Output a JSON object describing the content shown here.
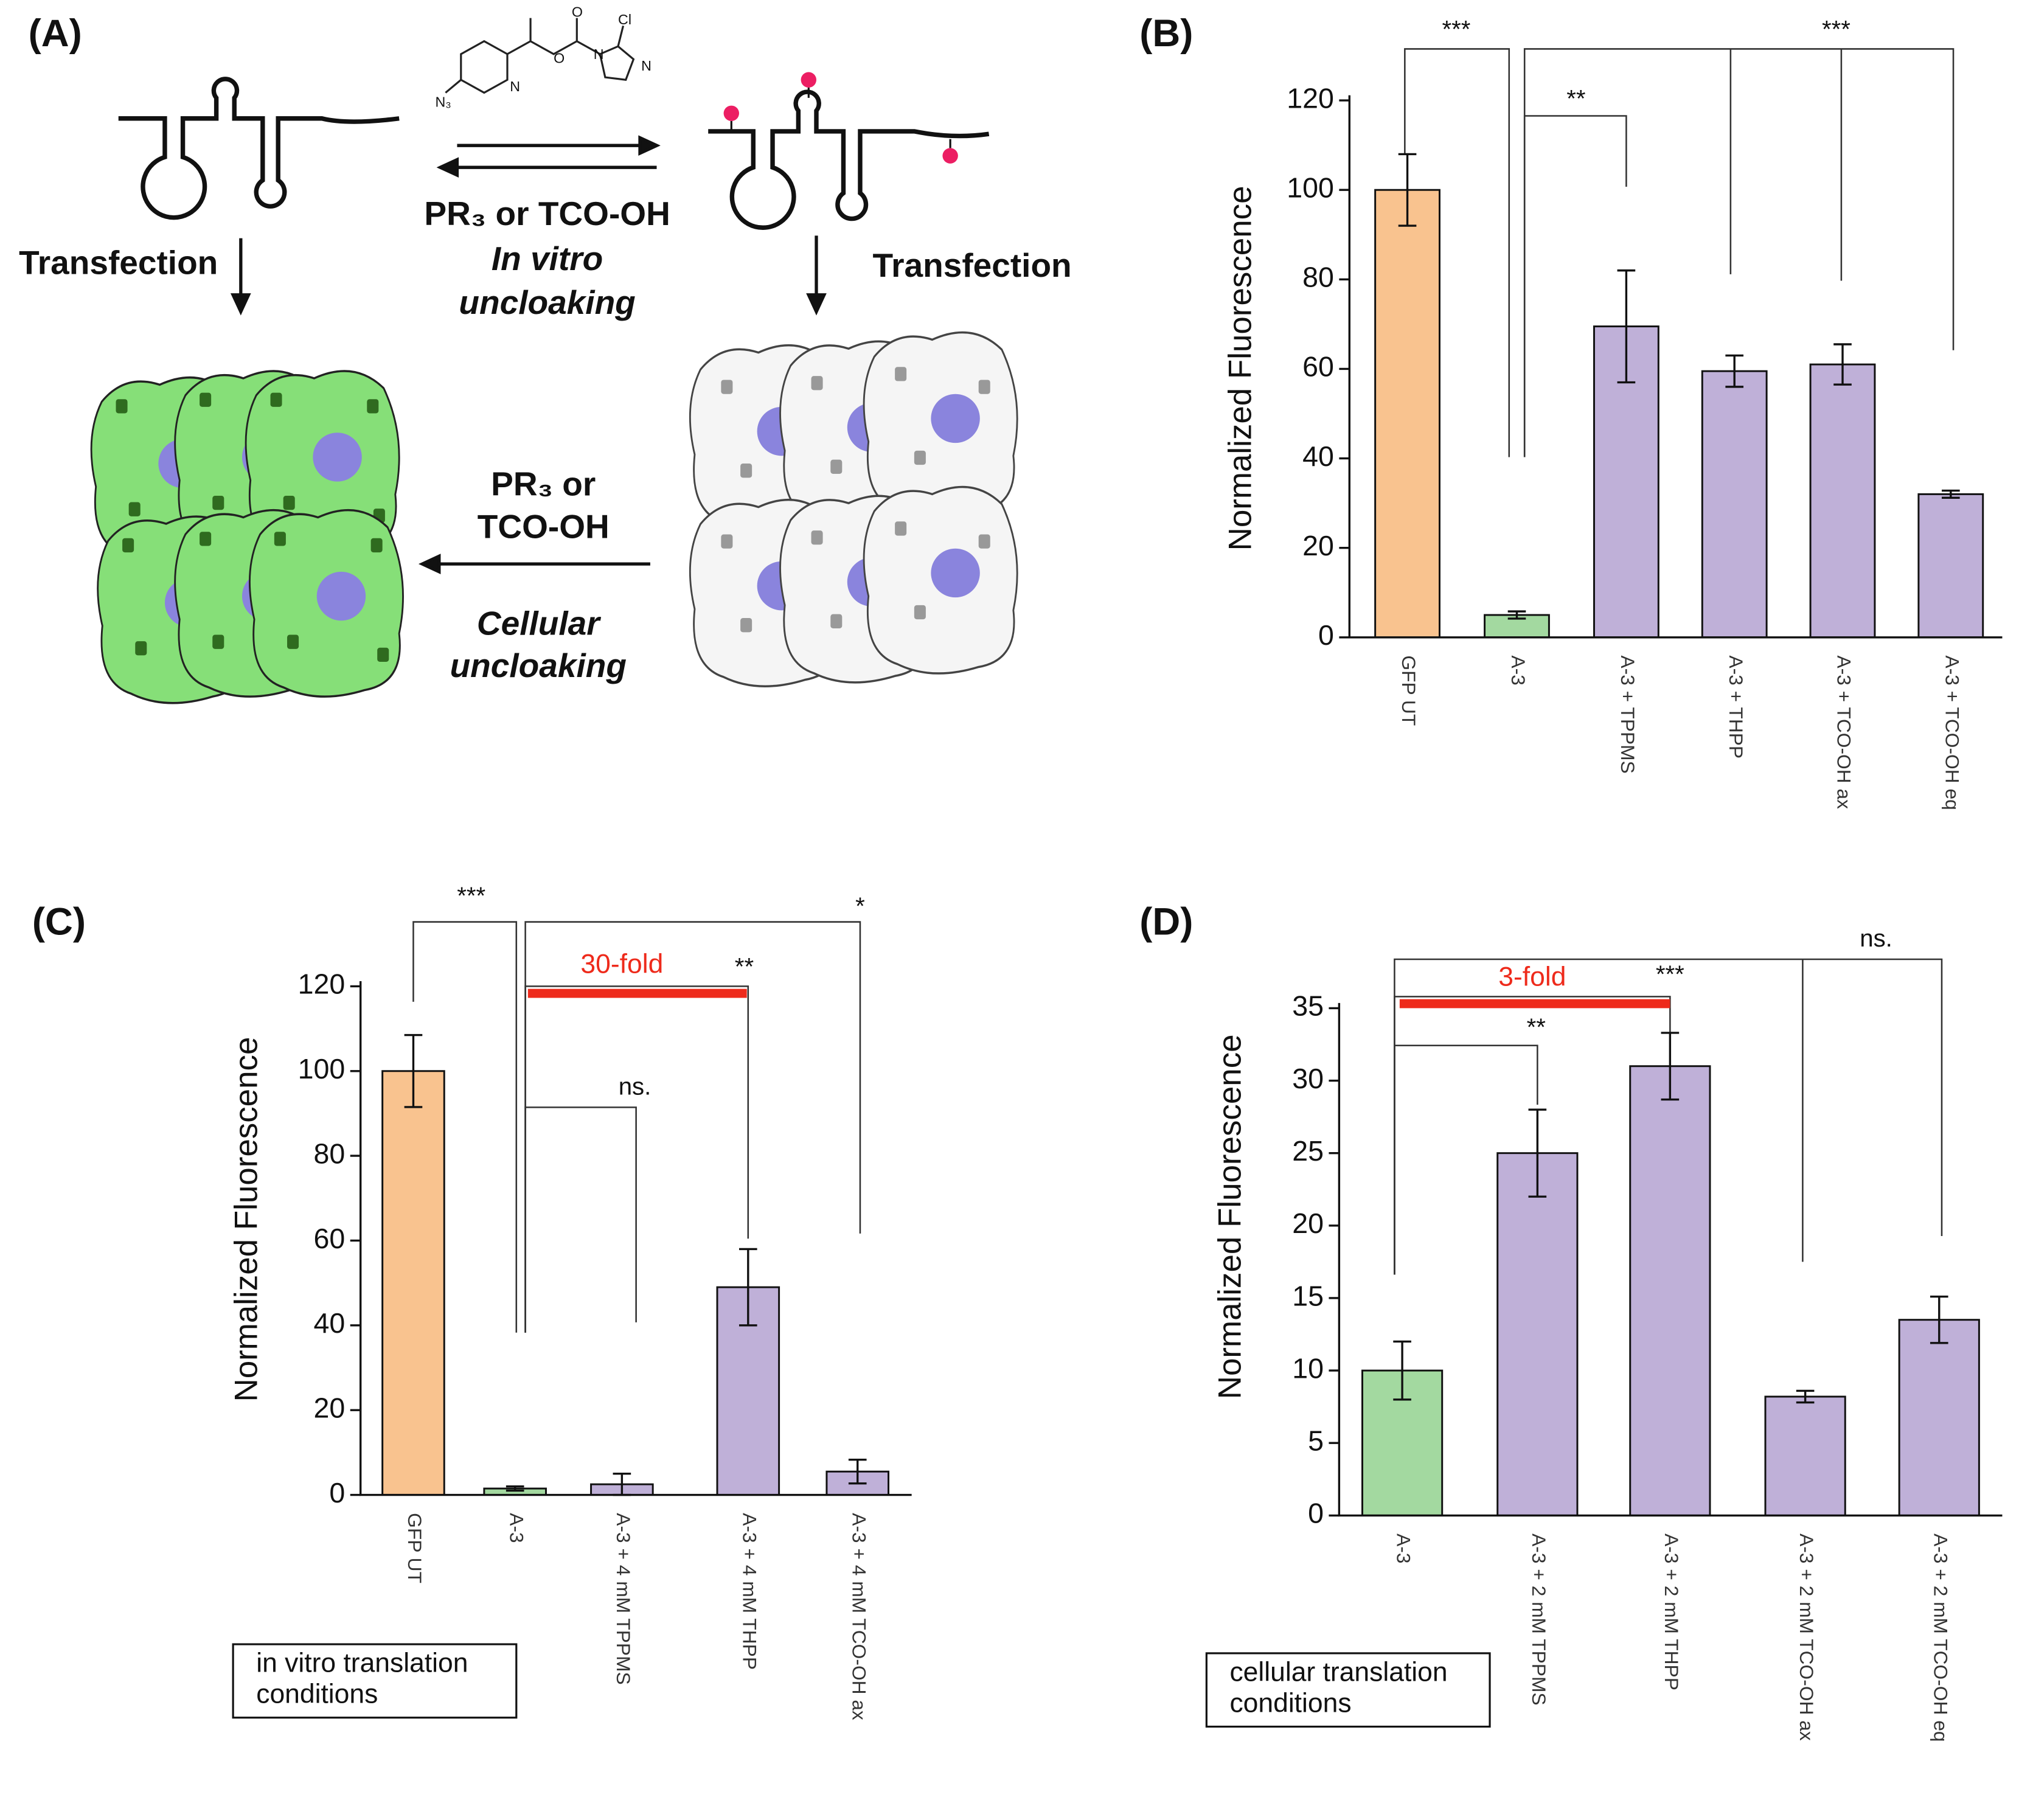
{
  "panel_a": {
    "label": "(A)",
    "transfection_left": "Transfection",
    "in_vitro_reagent": "PR₃ or TCO-OH",
    "in_vitro_line1": "In vitro",
    "in_vitro_line2": "uncloaking",
    "transfection_right": "Transfection",
    "cellular_reagent_line1": "PR₃ or",
    "cellular_reagent_line2": "TCO-OH",
    "cellular_line1": "Cellular",
    "cellular_line2": "uncloaking",
    "molecule_atoms": [
      "N₃",
      "N",
      "O",
      "O",
      "Cl",
      "N",
      "N"
    ]
  },
  "chart_data": [
    {
      "type": "bar",
      "panel_label": "(B)",
      "ylabel": "Normalized Fluorescence",
      "categories": [
        "GFP UT",
        "A-3",
        "A-3 + TPPMS",
        "A-3 + THPP",
        "A-3 + TCO-OH ax",
        "A-3 + TCO-OH eq"
      ],
      "values": [
        100,
        5,
        69.5,
        59.5,
        61,
        32
      ],
      "errors": [
        8,
        0.8,
        12.5,
        3.5,
        4.5,
        0.8
      ],
      "colors": [
        "#f9c38f",
        "#a3d9a0",
        "#bfb0d8",
        "#bfb0d8",
        "#bfb0d8",
        "#bfb0d8"
      ],
      "ylim": [
        0,
        120
      ],
      "yticks": [
        0,
        20,
        40,
        60,
        80,
        100,
        120
      ],
      "annotations": [
        "***",
        "**",
        "***"
      ]
    },
    {
      "type": "bar",
      "panel_label": "(C)",
      "ylabel": "Normalized Fluorescence",
      "categories": [
        "GFP UT",
        "A-3",
        "A-3 + 4 mM TPPMS",
        "A-3 + 4 mM THPP",
        "A-3 + 4 mM TCO-OH ax"
      ],
      "values": [
        100,
        1.5,
        2.5,
        49,
        5.5
      ],
      "errors": [
        8.5,
        0.5,
        2.5,
        9,
        2.8
      ],
      "colors": [
        "#f9c38f",
        "#a3d9a0",
        "#bfb0d8",
        "#bfb0d8",
        "#bfb0d8"
      ],
      "ylim": [
        0,
        120
      ],
      "yticks": [
        0,
        20,
        40,
        60,
        80,
        100,
        120
      ],
      "annotations": [
        "***",
        "*",
        "**",
        "ns."
      ],
      "fold_label": "30-fold",
      "fold_color": "#ee2a1b",
      "note": [
        "in vitro translation",
        "conditions"
      ]
    },
    {
      "type": "bar",
      "panel_label": "(D)",
      "ylabel": "Normalized Fluorescence",
      "categories": [
        "A-3",
        "A-3 + 2 mM TPPMS",
        "A-3 + 2 mM THPP",
        "A-3 + 2 mM TCO-OH ax",
        "A-3 + 2 mM TCO-OH eq"
      ],
      "values": [
        10,
        25,
        31,
        8.2,
        13.5
      ],
      "errors": [
        2,
        3,
        2.3,
        0.4,
        1.6
      ],
      "colors": [
        "#a3d9a0",
        "#bfb0d8",
        "#bfb0d8",
        "#bfb0d8",
        "#bfb0d8"
      ],
      "ylim": [
        0,
        35
      ],
      "yticks": [
        0,
        5,
        10,
        15,
        20,
        25,
        30,
        35
      ],
      "annotations": [
        "ns.",
        "***",
        "**"
      ],
      "fold_label": "3-fold",
      "fold_color": "#ee2a1b",
      "note": [
        "cellular translation",
        "conditions"
      ]
    }
  ]
}
